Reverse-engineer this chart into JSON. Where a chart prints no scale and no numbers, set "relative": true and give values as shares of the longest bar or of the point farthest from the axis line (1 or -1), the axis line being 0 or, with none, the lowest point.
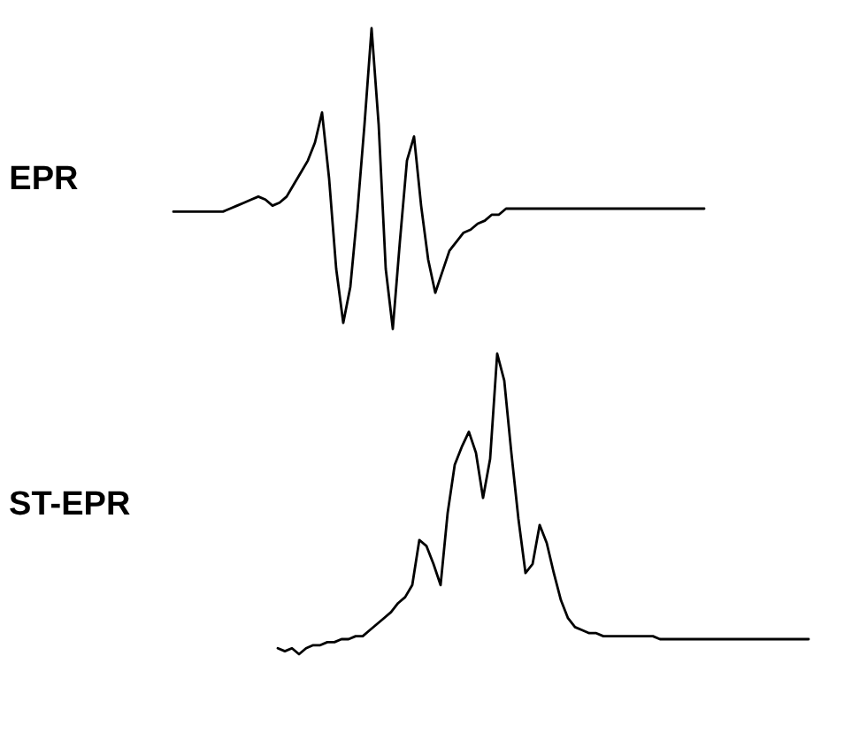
{
  "chart_data": [
    {
      "type": "line",
      "title": "EPR",
      "relative": true,
      "categories": [
        null,
        null,
        null,
        null,
        null,
        null,
        null,
        null,
        null,
        null,
        null,
        null,
        null,
        null,
        null,
        null,
        null,
        null,
        null,
        null,
        null,
        null,
        null,
        null,
        null,
        null,
        null,
        null,
        null,
        null,
        null,
        null,
        null,
        null,
        null,
        null,
        null,
        null,
        null,
        null,
        null,
        null,
        null,
        null,
        null,
        null,
        null,
        null,
        null,
        null,
        null,
        null,
        null,
        null,
        null,
        null,
        null,
        null,
        null,
        null,
        null,
        null,
        null,
        null,
        null,
        null,
        null,
        null,
        null,
        null,
        null,
        null,
        null,
        null,
        null,
        null
      ],
      "series": [
        {
          "color": "#000000",
          "values": [
            0.39,
            0.39,
            0.39,
            0.39,
            0.39,
            0.39,
            0.39,
            0.39,
            0.4,
            0.41,
            0.42,
            0.43,
            0.44,
            0.43,
            0.41,
            0.42,
            0.44,
            0.48,
            0.52,
            0.56,
            0.62,
            0.72,
            0.5,
            0.2,
            0.02,
            0.14,
            0.39,
            0.68,
            1,
            0.68,
            0.2,
            0,
            0.29,
            0.56,
            0.64,
            0.41,
            0.23,
            0.12,
            0.19,
            0.26,
            0.29,
            0.32,
            0.33,
            0.35,
            0.36,
            0.38,
            0.38,
            0.4,
            0.4,
            0.4,
            0.4,
            0.4,
            0.4,
            0.4,
            0.4,
            0.4,
            0.4,
            0.4,
            0.4,
            0.4,
            0.4,
            0.4,
            0.4,
            0.4,
            0.4,
            0.4,
            0.4,
            0.4,
            0.4,
            0.4,
            0.4,
            0.4,
            0.4,
            0.4,
            0.4,
            0.4
          ]
        }
      ]
    },
    {
      "type": "line",
      "title": "ST-EPR",
      "relative": true,
      "categories": [
        null,
        null,
        null,
        null,
        null,
        null,
        null,
        null,
        null,
        null,
        null,
        null,
        null,
        null,
        null,
        null,
        null,
        null,
        null,
        null,
        null,
        null,
        null,
        null,
        null,
        null,
        null,
        null,
        null,
        null,
        null,
        null,
        null,
        null,
        null,
        null,
        null,
        null,
        null,
        null,
        null,
        null,
        null,
        null,
        null,
        null,
        null,
        null,
        null,
        null,
        null,
        null,
        null,
        null,
        null,
        null,
        null,
        null,
        null,
        null,
        null,
        null,
        null,
        null,
        null,
        null,
        null,
        null,
        null,
        null,
        null,
        null,
        null,
        null,
        null,
        null
      ],
      "series": [
        {
          "color": "#000000",
          "values": [
            0.02,
            0.01,
            0.02,
            0,
            0.02,
            0.03,
            0.03,
            0.04,
            0.04,
            0.05,
            0.05,
            0.06,
            0.06,
            0.08,
            0.1,
            0.12,
            0.14,
            0.17,
            0.19,
            0.23,
            0.38,
            0.36,
            0.3,
            0.23,
            0.47,
            0.63,
            0.69,
            0.74,
            0.67,
            0.52,
            0.65,
            1,
            0.91,
            0.67,
            0.45,
            0.27,
            0.3,
            0.43,
            0.37,
            0.27,
            0.18,
            0.12,
            0.09,
            0.08,
            0.07,
            0.07,
            0.06,
            0.06,
            0.06,
            0.06,
            0.06,
            0.06,
            0.06,
            0.06,
            0.05,
            0.05,
            0.05,
            0.05,
            0.05,
            0.05,
            0.05,
            0.05,
            0.05,
            0.05,
            0.05,
            0.05,
            0.05,
            0.05,
            0.05,
            0.05,
            0.05,
            0.05,
            0.05,
            0.05,
            0.05,
            0.05
          ]
        }
      ]
    }
  ]
}
